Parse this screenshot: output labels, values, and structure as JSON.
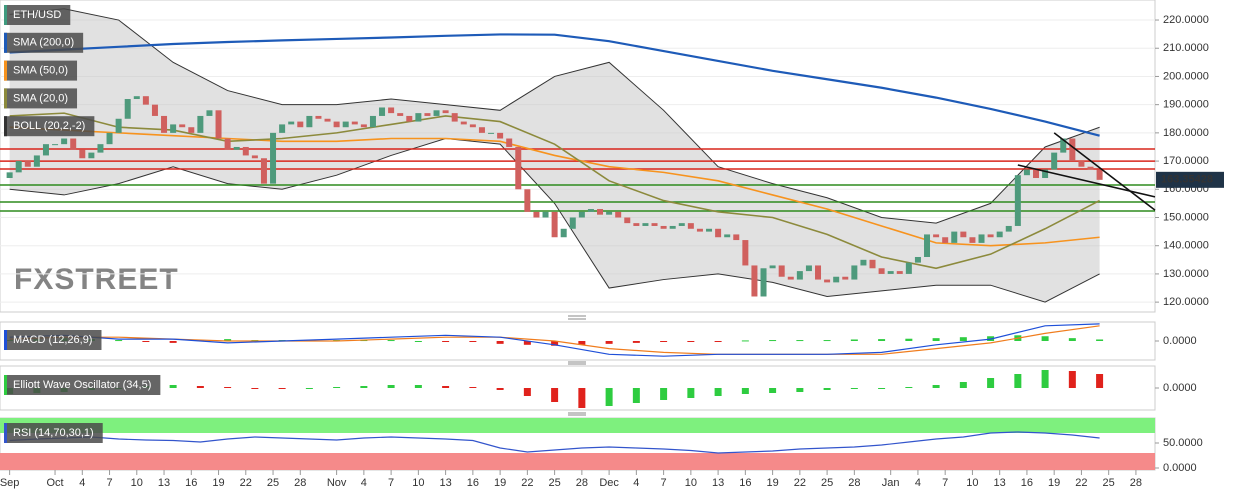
{
  "chart_data": {
    "type": "candlestick",
    "watermark": "FXSTREET",
    "xlim": [
      -1.06,
      126.1
    ],
    "xticks": [
      {
        "value": 0,
        "label": "Sep"
      },
      {
        "value": 5,
        "label": "Oct"
      },
      {
        "value": 8,
        "label": "4"
      },
      {
        "value": 11,
        "label": "7"
      },
      {
        "value": 14,
        "label": "10"
      },
      {
        "value": 17,
        "label": "13"
      },
      {
        "value": 20,
        "label": "16"
      },
      {
        "value": 23,
        "label": "19"
      },
      {
        "value": 26,
        "label": "22"
      },
      {
        "value": 29,
        "label": "25"
      },
      {
        "value": 32,
        "label": "28"
      },
      {
        "value": 36,
        "label": "Nov"
      },
      {
        "value": 39,
        "label": "4"
      },
      {
        "value": 42,
        "label": "7"
      },
      {
        "value": 45,
        "label": "10"
      },
      {
        "value": 48,
        "label": "13"
      },
      {
        "value": 51,
        "label": "16"
      },
      {
        "value": 54,
        "label": "19"
      },
      {
        "value": 57,
        "label": "22"
      },
      {
        "value": 60,
        "label": "25"
      },
      {
        "value": 63,
        "label": "28"
      },
      {
        "value": 66,
        "label": "Dec"
      },
      {
        "value": 69,
        "label": "4"
      },
      {
        "value": 72,
        "label": "7"
      },
      {
        "value": 75,
        "label": "10"
      },
      {
        "value": 78,
        "label": "13"
      },
      {
        "value": 81,
        "label": "16"
      },
      {
        "value": 84,
        "label": "19"
      },
      {
        "value": 87,
        "label": "22"
      },
      {
        "value": 90,
        "label": "25"
      },
      {
        "value": 93,
        "label": "28"
      },
      {
        "value": 97,
        "label": "Jan"
      },
      {
        "value": 100,
        "label": "4"
      },
      {
        "value": 103,
        "label": "7"
      },
      {
        "value": 106,
        "label": "10"
      },
      {
        "value": 109,
        "label": "13"
      },
      {
        "value": 112,
        "label": "16"
      },
      {
        "value": 115,
        "label": "19"
      },
      {
        "value": 118,
        "label": "22"
      },
      {
        "value": 121,
        "label": "25"
      },
      {
        "value": 124,
        "label": "28"
      }
    ],
    "ylim": [
      116.5,
      227.1
    ],
    "yticks": [
      {
        "value": 120,
        "label": "120.0000"
      },
      {
        "value": 130,
        "label": "130.0000"
      },
      {
        "value": 140,
        "label": "140.0000"
      },
      {
        "value": 150,
        "label": "150.0000"
      },
      {
        "value": 160,
        "label": "160.0000"
      },
      {
        "value": 170,
        "label": "170.0000"
      },
      {
        "value": 180,
        "label": "180.0000"
      },
      {
        "value": 190,
        "label": "190.0000"
      },
      {
        "value": 200,
        "label": "200.0000"
      },
      {
        "value": 210,
        "label": "210.0000"
      },
      {
        "value": 220,
        "label": "220.0000"
      }
    ],
    "grid": true,
    "last_price": 163.35428,
    "candles": {
      "name": "ETH/USD",
      "color": "#3f9b7f",
      "up_color": "#4e9a7c",
      "down_color": "#d0605e",
      "start": 0,
      "open": 164,
      "close": [
        166,
        170,
        168,
        172,
        176,
        176,
        178,
        174,
        171,
        173,
        176,
        180,
        185,
        192,
        193,
        190,
        186,
        180,
        183,
        182,
        180,
        186,
        188,
        178,
        174,
        175,
        172,
        171,
        162,
        180,
        183,
        184,
        182,
        186,
        185,
        184,
        182,
        184,
        183,
        182,
        186,
        189,
        187,
        186,
        184,
        187,
        186,
        188,
        187,
        184,
        183,
        182,
        180,
        180,
        178,
        175,
        160,
        152,
        150,
        152,
        143,
        146,
        150,
        152,
        153,
        151,
        152,
        150,
        148,
        147,
        148,
        147,
        146,
        147,
        148,
        146,
        145,
        146,
        143,
        144,
        142,
        133,
        122,
        132,
        133,
        129,
        128,
        131,
        133,
        128,
        127,
        129,
        128,
        133,
        135,
        132,
        130,
        131,
        130,
        134,
        136,
        144,
        143,
        141,
        145,
        143,
        141,
        144,
        143,
        145,
        147,
        165,
        167,
        164,
        167,
        173,
        178,
        170,
        168,
        167,
        163.35
      ]
    },
    "line_x": [
      0,
      6,
      12,
      18,
      24,
      30,
      36,
      42,
      48,
      54,
      60,
      66,
      72,
      78,
      84,
      90,
      96,
      102,
      108,
      114,
      120
    ],
    "series": [
      {
        "name": "SMA (200,0)",
        "color": "#1e5bb8",
        "values": [
          208.5,
          209.5,
          210.5,
          211.5,
          212.2,
          212.8,
          213.3,
          213.8,
          214.4,
          214.9,
          214.8,
          212.5,
          209,
          205.5,
          202,
          199,
          196,
          192.5,
          188.5,
          184,
          179
        ]
      },
      {
        "name": "SMA (50,0)",
        "color": "#f7931e",
        "values": [
          182,
          181,
          180,
          179,
          178,
          177,
          177,
          178,
          178,
          177,
          172,
          168,
          166,
          163,
          158,
          153,
          147,
          141,
          140,
          141,
          143
        ]
      },
      {
        "name": "SMA (20,0)",
        "color": "#8c8a3c",
        "values": [
          186,
          187,
          182,
          181,
          177,
          178,
          180,
          183,
          186,
          184,
          176,
          163,
          156,
          152,
          150,
          144,
          136,
          132,
          137,
          146,
          156
        ]
      }
    ],
    "bollinger": {
      "name": "BOLL (20,2,-2)",
      "color": "#333333",
      "upper": [
        222,
        224,
        220,
        205,
        195,
        190,
        190,
        192,
        190,
        188,
        200,
        205,
        188,
        168,
        162,
        157,
        150,
        148,
        155,
        175,
        182
      ],
      "lower": [
        160,
        158,
        162,
        168,
        162,
        160,
        165,
        172,
        178,
        176,
        155,
        125,
        128,
        130,
        127,
        122,
        124,
        126,
        126,
        120,
        130
      ]
    },
    "levels": {
      "red": [
        174.3,
        170,
        167.2
      ],
      "green": [
        161.5,
        155.5,
        152.3
      ]
    },
    "trendlines": [
      [
        [
          115,
          180
        ],
        [
          126.1,
          152.6
        ]
      ],
      [
        [
          111,
          168.6
        ],
        [
          126.1,
          157.3
        ]
      ]
    ],
    "osc_x": [
      0,
      3,
      6,
      9,
      12,
      15,
      18,
      21,
      24,
      27,
      30,
      33,
      36,
      39,
      42,
      45,
      48,
      51,
      54,
      57,
      60,
      63,
      66,
      69,
      72,
      75,
      78,
      81,
      84,
      87,
      90,
      93,
      96,
      99,
      102,
      105,
      108,
      111,
      114,
      117,
      120
    ],
    "macd": {
      "name": "MACD (12,26,9)",
      "ylim": [
        -10,
        10
      ],
      "yticks": [
        {
          "value": 0,
          "label": "0.0000"
        }
      ],
      "macd": {
        "color": "#1e4fd8",
        "values": [
          2,
          3,
          1,
          1,
          -1,
          0,
          1,
          2,
          3,
          2,
          -2,
          -7,
          -8,
          -7,
          -7,
          -7,
          -6,
          -2,
          1,
          8,
          9
        ]
      },
      "signal": {
        "color": "#f07d1e",
        "values": [
          1,
          2,
          2,
          1,
          0,
          0,
          0,
          1,
          2,
          2,
          0,
          -4,
          -6,
          -7,
          -7,
          -7,
          -7,
          -4,
          -1,
          4,
          8
        ]
      },
      "hist": [
        0.5,
        1,
        1.5,
        1,
        0.5,
        -0.5,
        -1,
        0.5,
        1,
        0.5,
        0.5,
        0.5,
        0.5,
        0.5,
        0.5,
        0,
        -0.5,
        -0.5,
        -1.5,
        -2,
        -2.5,
        -2,
        -1.5,
        -1,
        -0.5,
        -0.5,
        -0.3,
        0.3,
        0.5,
        0.5,
        0.5,
        0.8,
        1,
        1.2,
        1.5,
        2,
        2.5,
        3,
        2.5,
        1.5,
        0.8
      ]
    },
    "ewo": {
      "name": "Elliott Wave Oscillator (34,5)",
      "ylim": [
        -22,
        22
      ],
      "yticks": [
        {
          "value": 0,
          "label": "0.0000"
        }
      ],
      "hist": [
        -6,
        -5,
        -4,
        -2,
        0,
        2,
        3,
        2,
        1,
        0,
        -1,
        0,
        1,
        2,
        3,
        3,
        2,
        1,
        -2,
        -8,
        -14,
        -20,
        -18,
        -15,
        -12,
        -10,
        -8,
        -6,
        -5,
        -4,
        -2,
        -1,
        0,
        1,
        3,
        6,
        10,
        14,
        18,
        17,
        14
      ]
    },
    "rsi": {
      "name": "RSI (14,70,30,1)",
      "color": "#3355cc",
      "ylim": [
        -4,
        100
      ],
      "overbought": 70,
      "oversold": 30,
      "yticks": [
        {
          "value": 0,
          "label": "0.0000"
        },
        {
          "value": 50,
          "label": "50.0000"
        }
      ],
      "values": [
        55,
        58,
        60,
        62,
        58,
        56,
        55,
        52,
        58,
        62,
        60,
        58,
        56,
        60,
        62,
        60,
        58,
        55,
        40,
        32,
        36,
        40,
        42,
        40,
        38,
        35,
        30,
        32,
        34,
        38,
        40,
        42,
        46,
        52,
        58,
        62,
        70,
        72,
        70,
        66,
        60
      ]
    }
  }
}
